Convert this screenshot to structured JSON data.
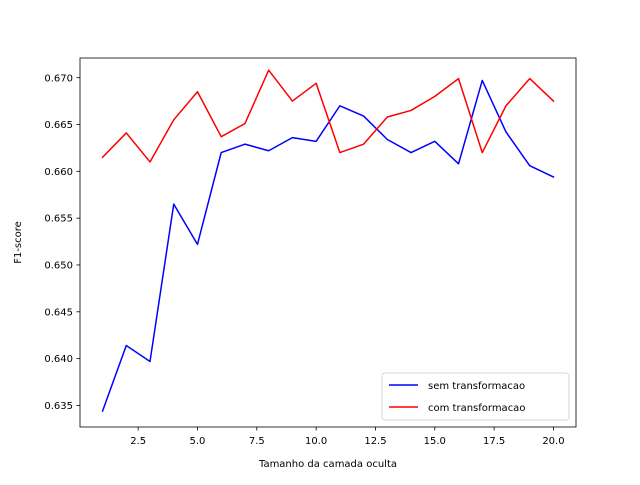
{
  "chart_data": {
    "type": "line",
    "xlabel": "Tamanho da camada oculta",
    "ylabel": "F1-score",
    "xlim": [
      0.05,
      20.95
    ],
    "ylim": [
      0.6327,
      0.6721
    ],
    "xticks": [
      2.5,
      5.0,
      7.5,
      10.0,
      12.5,
      15.0,
      17.5,
      20.0
    ],
    "xtick_labels": [
      "2.5",
      "5.0",
      "7.5",
      "10.0",
      "12.5",
      "15.0",
      "17.5",
      "20.0"
    ],
    "yticks": [
      0.635,
      0.64,
      0.645,
      0.65,
      0.655,
      0.66,
      0.665,
      0.67
    ],
    "ytick_labels": [
      "0.635",
      "0.640",
      "0.645",
      "0.650",
      "0.655",
      "0.660",
      "0.665",
      "0.670"
    ],
    "grid": false,
    "legend_position": "lower-right",
    "x": [
      1,
      2,
      3,
      4,
      5,
      6,
      7,
      8,
      9,
      10,
      11,
      12,
      13,
      14,
      15,
      16,
      17,
      18,
      19,
      20
    ],
    "series": [
      {
        "name": "sem transformacao",
        "color": "#0000ff",
        "values": [
          0.6344,
          0.6414,
          0.6397,
          0.6565,
          0.6522,
          0.662,
          0.6629,
          0.6622,
          0.6636,
          0.6632,
          0.667,
          0.6659,
          0.6634,
          0.662,
          0.6632,
          0.6608,
          0.6697,
          0.6642,
          0.6606,
          0.6594
        ]
      },
      {
        "name": "com transformacao",
        "color": "#ff0000",
        "values": [
          0.6615,
          0.6641,
          0.661,
          0.6655,
          0.6685,
          0.6637,
          0.6651,
          0.6708,
          0.6675,
          0.6694,
          0.662,
          0.6629,
          0.6658,
          0.6665,
          0.668,
          0.6699,
          0.662,
          0.667,
          0.6699,
          0.6675
        ]
      }
    ]
  }
}
